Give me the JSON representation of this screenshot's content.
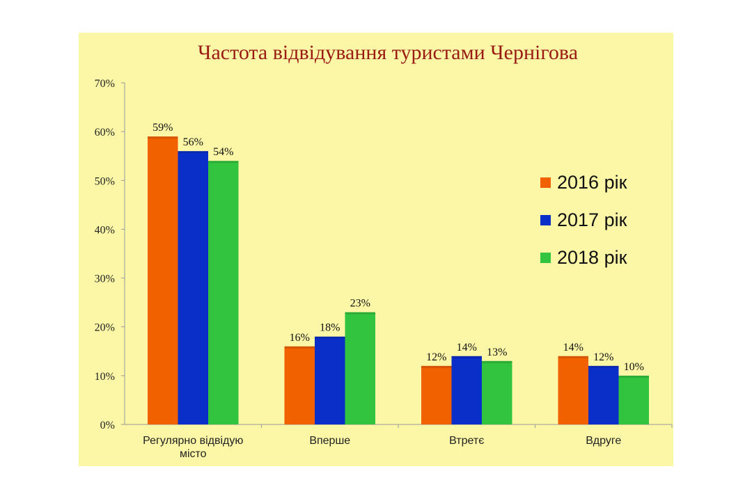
{
  "colors": {
    "panel_bg": "#fbf7a6",
    "title": "#9a1b14",
    "series": [
      "#f26100",
      "#0a2fc8",
      "#33c43f"
    ]
  },
  "chart_data": {
    "type": "bar",
    "title": "Частота відвідування туристами Чернігова",
    "categories": [
      [
        "Регулярно відвідую",
        "місто"
      ],
      [
        "Вперше"
      ],
      [
        "Втретє"
      ],
      [
        "Вдруге"
      ]
    ],
    "series": [
      {
        "name": "2016 рік",
        "values": [
          59,
          16,
          12,
          14
        ],
        "labels": [
          "59%",
          "16%",
          "12%",
          "14%"
        ]
      },
      {
        "name": "2017 рік",
        "values": [
          56,
          18,
          14,
          12
        ],
        "labels": [
          "56%",
          "18%",
          "14%",
          "12%"
        ]
      },
      {
        "name": "2018 рік",
        "values": [
          54,
          23,
          13,
          10
        ],
        "labels": [
          "54%",
          "23%",
          "13%",
          "10%"
        ]
      }
    ],
    "ylim": [
      0,
      70
    ],
    "yticks": [
      0,
      10,
      20,
      30,
      40,
      50,
      60,
      70
    ],
    "ytick_labels": [
      "0%",
      "10%",
      "20%",
      "30%",
      "40%",
      "50%",
      "60%",
      "70%"
    ],
    "xlabel": "",
    "ylabel": "",
    "legend_position": "right"
  }
}
